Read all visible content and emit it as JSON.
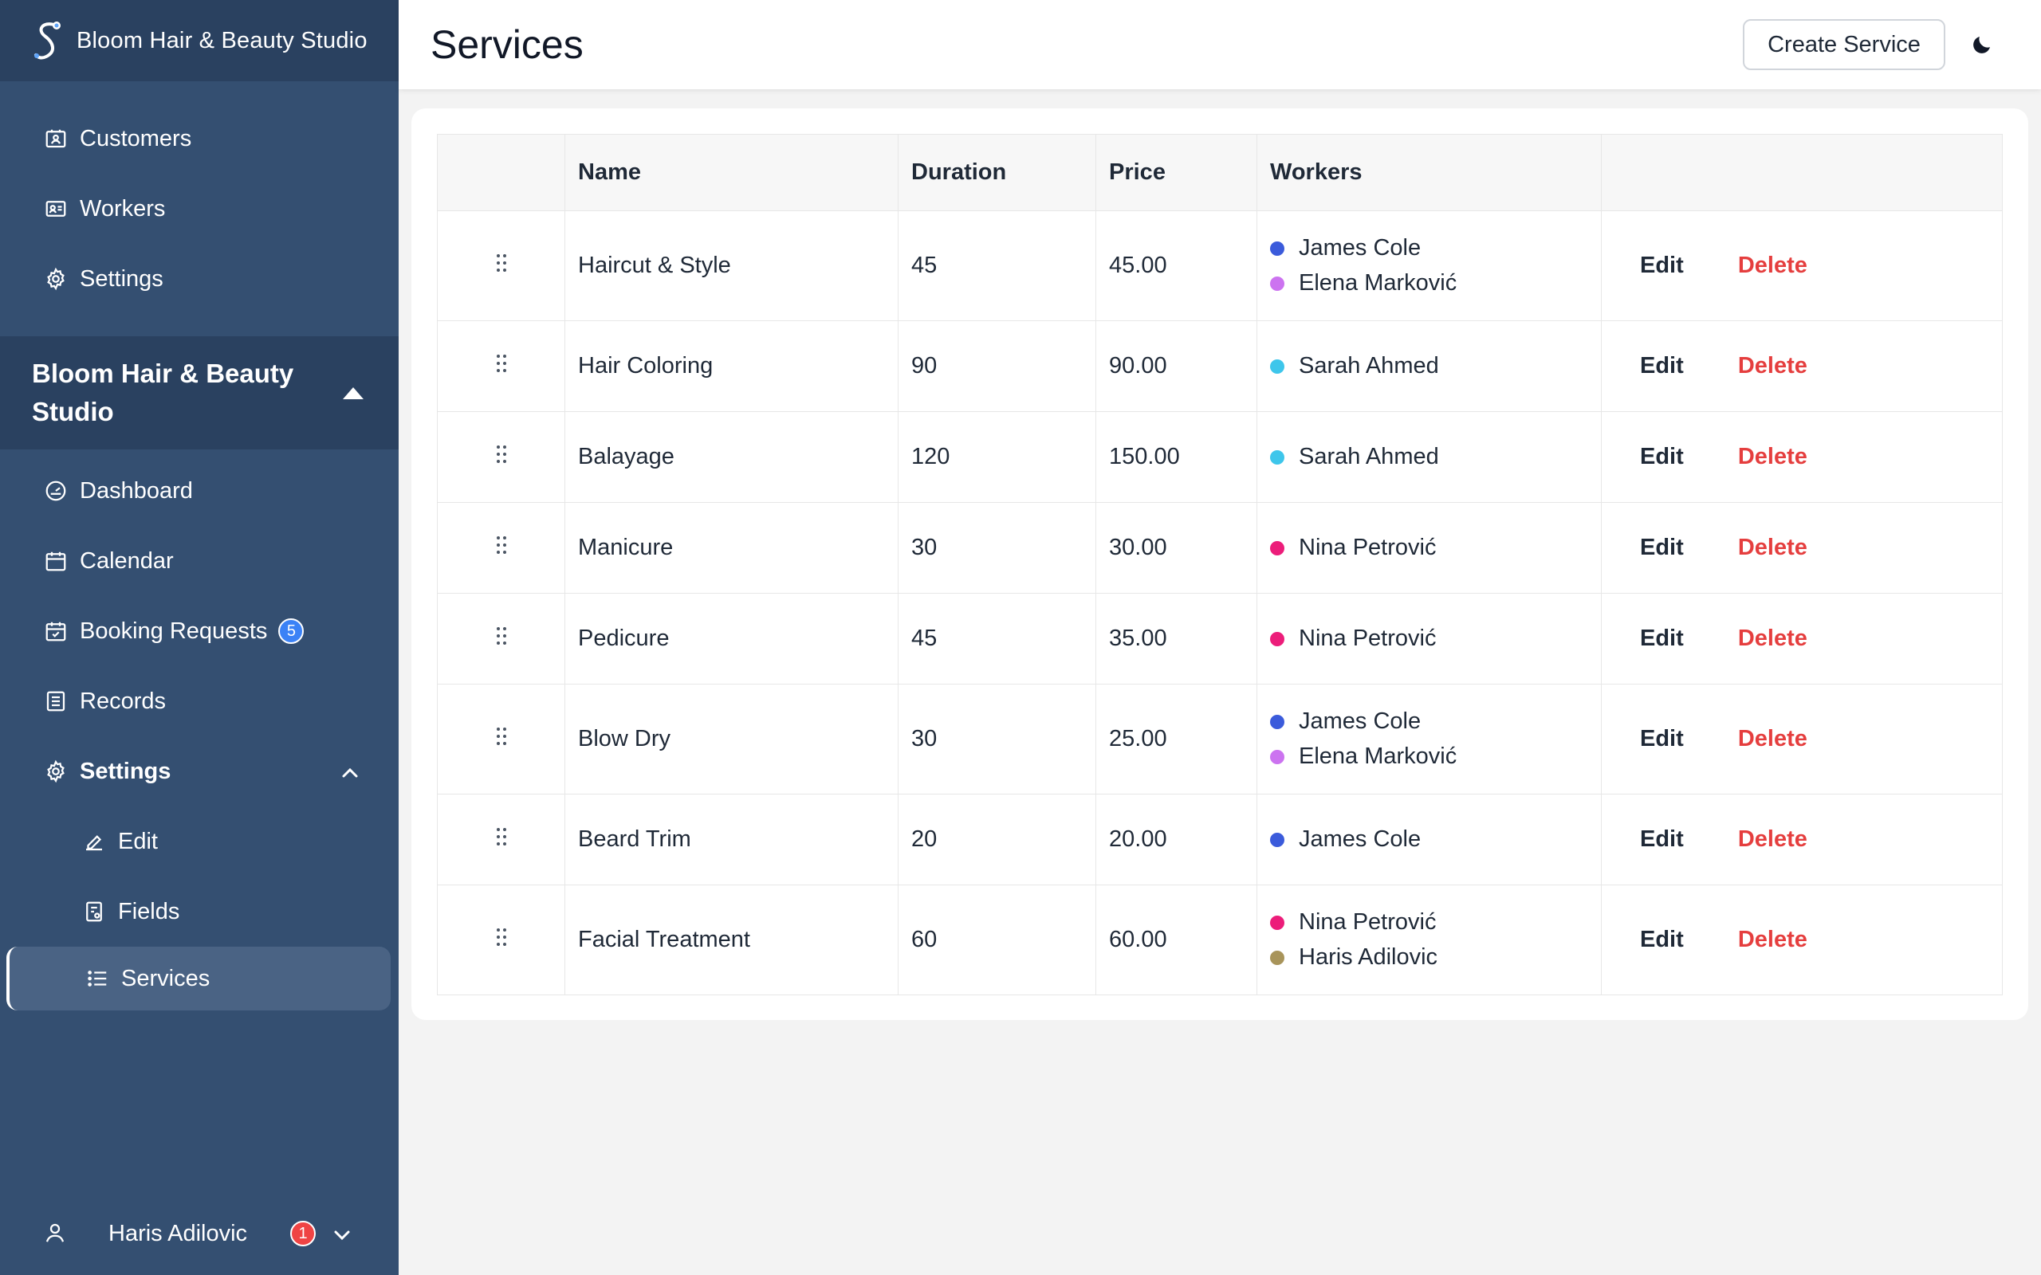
{
  "sidebar": {
    "brand": "Bloom Hair & Beauty Studio",
    "top_items": [
      {
        "label": "Customers",
        "icon": "contact-card-icon"
      },
      {
        "label": "Workers",
        "icon": "id-card-icon"
      },
      {
        "label": "Settings",
        "icon": "gear-icon"
      }
    ],
    "org_name": "Bloom Hair & Beauty Studio",
    "items": [
      {
        "label": "Dashboard",
        "icon": "gauge-icon"
      },
      {
        "label": "Calendar",
        "icon": "calendar-icon"
      },
      {
        "label": "Booking Requests",
        "icon": "calendar-check-icon",
        "badge": "5"
      },
      {
        "label": "Records",
        "icon": "list-box-icon"
      }
    ],
    "settings_group": {
      "label": "Settings",
      "children": [
        {
          "label": "Edit",
          "icon": "pencil-icon"
        },
        {
          "label": "Fields",
          "icon": "form-icon"
        },
        {
          "label": "Services",
          "icon": "list-icon",
          "active": true
        }
      ]
    },
    "user": {
      "name": "Haris Adilovic",
      "badge": "1"
    }
  },
  "header": {
    "title": "Services",
    "create_label": "Create Service"
  },
  "table": {
    "columns": [
      "",
      "Name",
      "Duration",
      "Price",
      "Workers",
      ""
    ],
    "edit_label": "Edit",
    "delete_label": "Delete",
    "rows": [
      {
        "name": "Haircut & Style",
        "duration": "45",
        "price": "45.00",
        "workers": [
          {
            "name": "James Cole",
            "color": "#3b5bdb"
          },
          {
            "name": "Elena Marković",
            "color": "#cc73f0"
          }
        ]
      },
      {
        "name": "Hair Coloring",
        "duration": "90",
        "price": "90.00",
        "workers": [
          {
            "name": "Sarah Ahmed",
            "color": "#3ec6eb"
          }
        ]
      },
      {
        "name": "Balayage",
        "duration": "120",
        "price": "150.00",
        "workers": [
          {
            "name": "Sarah Ahmed",
            "color": "#3ec6eb"
          }
        ]
      },
      {
        "name": "Manicure",
        "duration": "30",
        "price": "30.00",
        "workers": [
          {
            "name": "Nina Petrović",
            "color": "#ec1d7a"
          }
        ]
      },
      {
        "name": "Pedicure",
        "duration": "45",
        "price": "35.00",
        "workers": [
          {
            "name": "Nina Petrović",
            "color": "#ec1d7a"
          }
        ]
      },
      {
        "name": "Blow Dry",
        "duration": "30",
        "price": "25.00",
        "workers": [
          {
            "name": "James Cole",
            "color": "#3b5bdb"
          },
          {
            "name": "Elena Marković",
            "color": "#cc73f0"
          }
        ]
      },
      {
        "name": "Beard Trim",
        "duration": "20",
        "price": "20.00",
        "workers": [
          {
            "name": "James Cole",
            "color": "#3b5bdb"
          }
        ]
      },
      {
        "name": "Facial Treatment",
        "duration": "60",
        "price": "60.00",
        "workers": [
          {
            "name": "Nina Petrović",
            "color": "#ec1d7a"
          },
          {
            "name": "Haris Adilovic",
            "color": "#a8945a"
          }
        ]
      }
    ]
  },
  "colors": {
    "sidebar_bg": "#344f71",
    "sidebar_dark": "#2a4160",
    "delete": "#e53e3e",
    "badge_blue": "#3b82f6",
    "badge_red": "#ef4444"
  }
}
